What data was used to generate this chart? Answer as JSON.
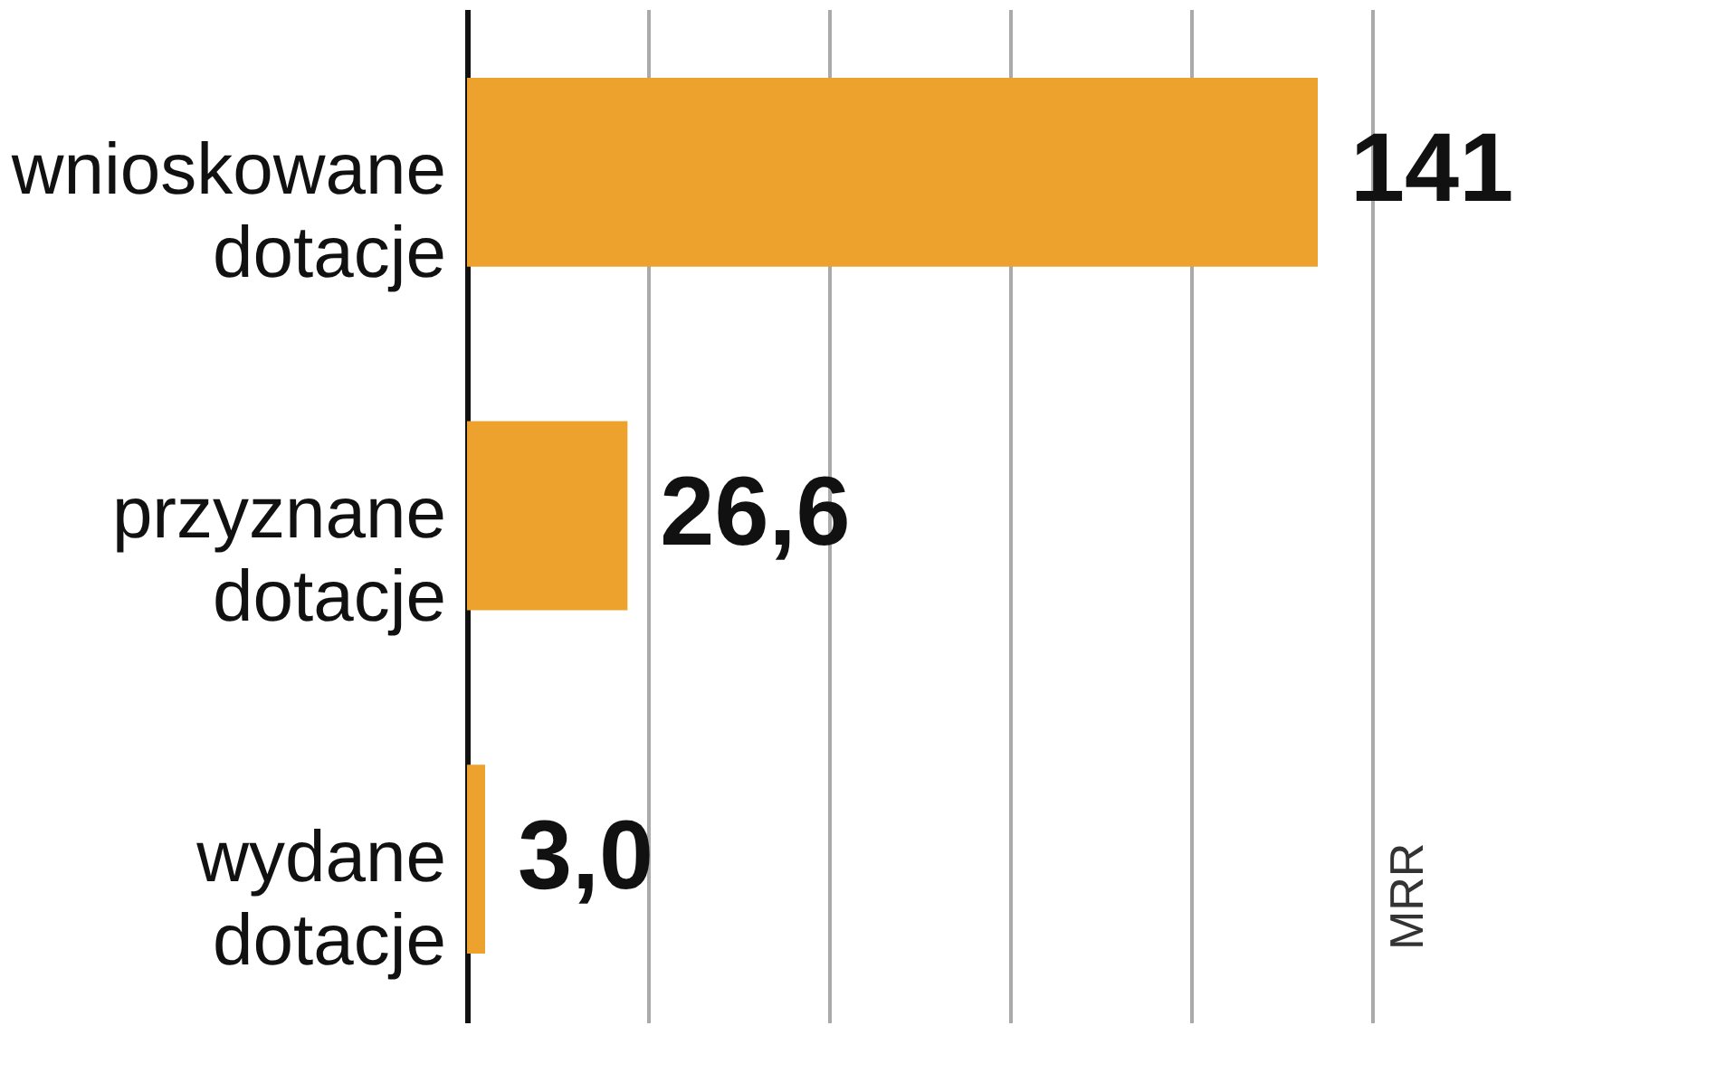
{
  "chart_data": {
    "type": "bar",
    "orientation": "horizontal",
    "categories": [
      "wnioskowane dotacje",
      "przyznane dotacje",
      "wydane dotacje"
    ],
    "values": [
      141,
      26.6,
      3.0
    ],
    "color": "#eea22e",
    "value_labels": [
      "141",
      "26,6",
      "3,0"
    ],
    "xlim": [
      0,
      150
    ],
    "xticks": [
      {
        "value": 30,
        "label": null
      },
      {
        "value": 60,
        "label": null
      },
      {
        "value": 90,
        "label": null
      },
      {
        "value": 120,
        "label": null
      },
      {
        "value": 150,
        "label": null
      }
    ],
    "grid": "x",
    "annotations": [
      "MRR"
    ]
  }
}
